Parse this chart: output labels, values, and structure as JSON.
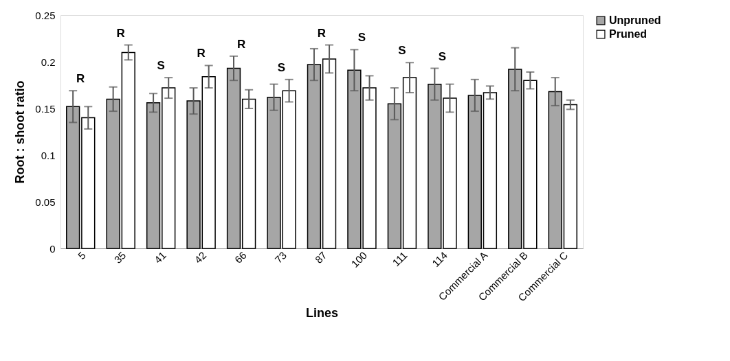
{
  "chart_data": {
    "type": "bar",
    "xlabel": "Lines",
    "ylabel": "Root : shoot ratio",
    "categories": [
      "5",
      "35",
      "41",
      "42",
      "66",
      "73",
      "87",
      "100",
      "111",
      "114",
      "Commercial A",
      "Commercial B",
      "Commercial C"
    ],
    "series": [
      {
        "name": "Unpruned",
        "color": "#a6a6a6",
        "values": [
          0.152,
          0.16,
          0.156,
          0.158,
          0.193,
          0.162,
          0.197,
          0.191,
          0.155,
          0.176,
          0.164,
          0.192,
          0.168
        ],
        "errors": [
          0.017,
          0.013,
          0.01,
          0.014,
          0.013,
          0.014,
          0.017,
          0.022,
          0.017,
          0.017,
          0.017,
          0.023,
          0.015
        ]
      },
      {
        "name": "Pruned",
        "color": "#ffffff",
        "values": [
          0.14,
          0.21,
          0.172,
          0.184,
          0.16,
          0.169,
          0.203,
          0.172,
          0.183,
          0.161,
          0.167,
          0.18,
          0.154
        ],
        "errors": [
          0.012,
          0.008,
          0.011,
          0.012,
          0.01,
          0.012,
          0.015,
          0.013,
          0.016,
          0.015,
          0.007,
          0.009,
          0.005
        ]
      }
    ],
    "ylim": [
      0,
      0.25
    ],
    "yticks": [
      0,
      0.05,
      0.1,
      0.15,
      0.2,
      0.25
    ],
    "grid": false,
    "legend": "right",
    "annotations": [
      "R",
      "R",
      "S",
      "R",
      "R",
      "S",
      "R",
      "S",
      "S",
      "S"
    ]
  }
}
